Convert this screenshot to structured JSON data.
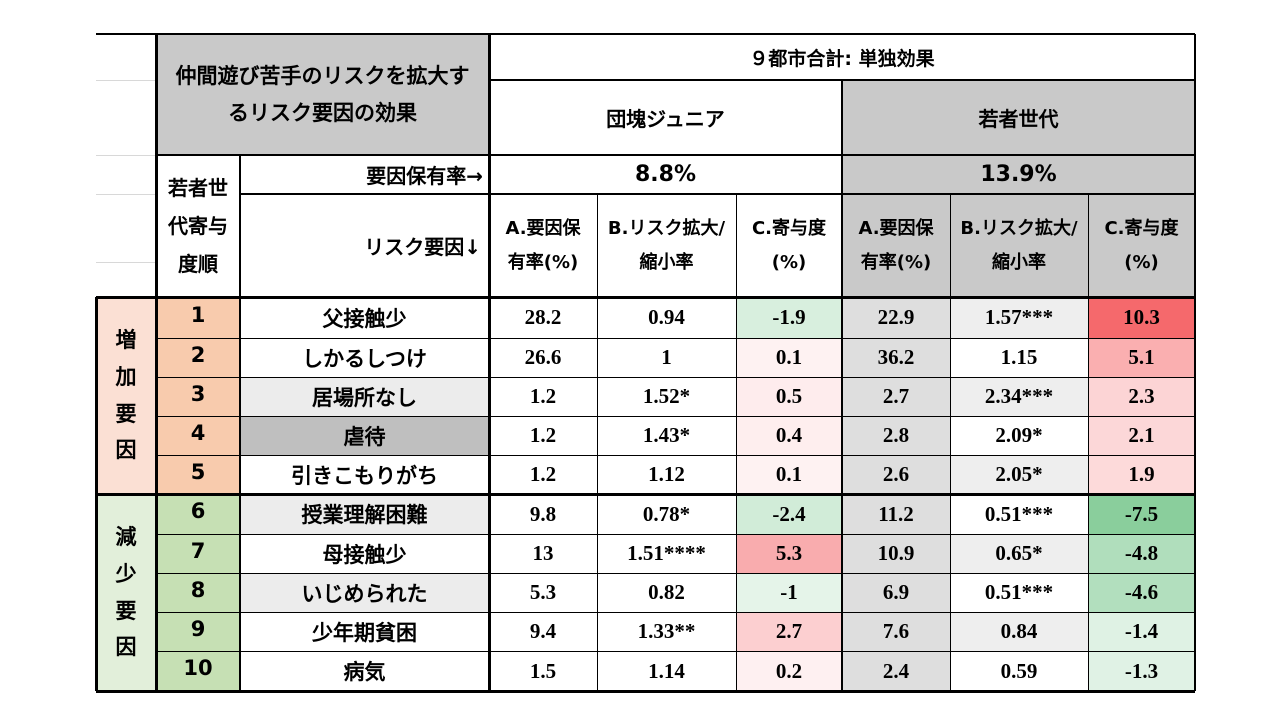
{
  "title": "仲間遊び苦手のリスクを拡大するリスク要因の効果",
  "super_header": "９都市合計: 単独効果",
  "groups": [
    {
      "name": "団塊ジュニア",
      "rate": "8.8%"
    },
    {
      "name": "若者世代",
      "rate": "13.9%"
    }
  ],
  "rank_header": "若者世代寄与度順",
  "rate_label": "要因保有率→",
  "factor_label": "リスク要因↓",
  "col_headers": [
    "A.要因保有率(%)",
    "B.リスク拡大/縮小率",
    "C.寄与度(%)"
  ],
  "side_labels": {
    "increase": "増加要因",
    "decrease": "減少要因"
  },
  "colors": {
    "increase_side": "#fbe0d4",
    "increase_rank": "#f8cbad",
    "decrease_side": "#e2efda",
    "decrease_rank": "#c6e0b4",
    "gray_header": "#c9c9c9",
    "row_gray": "#ececec"
  },
  "rows": [
    {
      "rank": "1",
      "factor": "父接触少",
      "j_a": "28.2",
      "j_b": "0.94",
      "j_c": "-1.9",
      "y_a": "22.9",
      "y_b": "1.57***",
      "y_c": "10.3"
    },
    {
      "rank": "2",
      "factor": "しかるしつけ",
      "j_a": "26.6",
      "j_b": "1",
      "j_c": "0.1",
      "y_a": "36.2",
      "y_b": "1.15",
      "y_c": "5.1"
    },
    {
      "rank": "3",
      "factor": "居場所なし",
      "j_a": "1.2",
      "j_b": "1.52*",
      "j_c": "0.5",
      "y_a": "2.7",
      "y_b": "2.34***",
      "y_c": "2.3"
    },
    {
      "rank": "4",
      "factor": "虐待",
      "j_a": "1.2",
      "j_b": "1.43*",
      "j_c": "0.4",
      "y_a": "2.8",
      "y_b": "2.09*",
      "y_c": "2.1"
    },
    {
      "rank": "5",
      "factor": "引きこもりがち",
      "j_a": "1.2",
      "j_b": "1.12",
      "j_c": "0.1",
      "y_a": "2.6",
      "y_b": "2.05*",
      "y_c": "1.9"
    },
    {
      "rank": "6",
      "factor": "授業理解困難",
      "j_a": "9.8",
      "j_b": "0.78*",
      "j_c": "-2.4",
      "y_a": "11.2",
      "y_b": "0.51***",
      "y_c": "-7.5"
    },
    {
      "rank": "7",
      "factor": "母接触少",
      "j_a": "13",
      "j_b": "1.51****",
      "j_c": "5.3",
      "y_a": "10.9",
      "y_b": "0.65*",
      "y_c": "-4.8"
    },
    {
      "rank": "8",
      "factor": "いじめられた",
      "j_a": "5.3",
      "j_b": "0.82",
      "j_c": "-1",
      "y_a": "6.9",
      "y_b": "0.51***",
      "y_c": "-4.6"
    },
    {
      "rank": "9",
      "factor": "少年期貧困",
      "j_a": "9.4",
      "j_b": "1.33**",
      "j_c": "2.7",
      "y_a": "7.6",
      "y_b": "0.84",
      "y_c": "-1.4"
    },
    {
      "rank": "10",
      "factor": "病気",
      "j_a": "1.5",
      "j_b": "1.14",
      "j_c": "0.2",
      "y_a": "2.4",
      "y_b": "0.59",
      "y_c": "-1.3"
    }
  ]
}
